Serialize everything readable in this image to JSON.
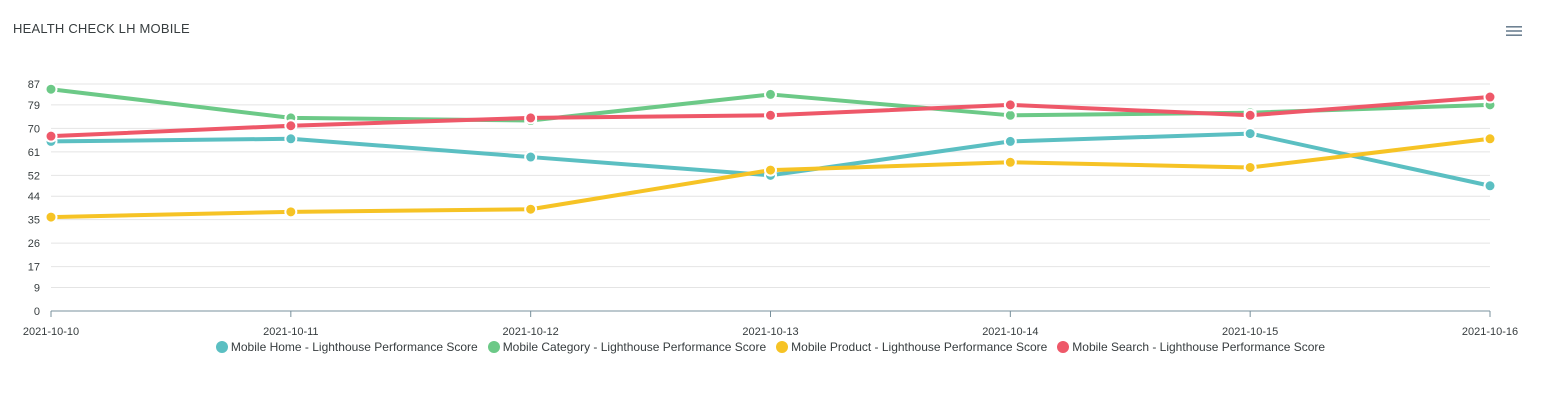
{
  "title": "HEALTH CHECK LH MOBILE",
  "menu": {
    "icon": "hamburger-menu-icon"
  },
  "chart_data": {
    "type": "line",
    "x": [
      "2021-10-10",
      "2021-10-11",
      "2021-10-12",
      "2021-10-13",
      "2021-10-14",
      "2021-10-15",
      "2021-10-16"
    ],
    "y_ticks": [
      "0",
      "9",
      "17",
      "26",
      "35",
      "44",
      "52",
      "61",
      "70",
      "79",
      "87"
    ],
    "ylim": [
      0,
      87
    ],
    "grid": true,
    "legend_position": "bottom",
    "series": [
      {
        "name": "Mobile Home - Lighthouse Performance Score",
        "color": "#5bbfc2",
        "values": [
          65,
          66,
          59,
          52,
          65,
          68,
          48
        ]
      },
      {
        "name": "Mobile Category - Lighthouse Performance Score",
        "color": "#6cc987",
        "values": [
          85,
          74,
          73,
          83,
          75,
          76,
          79
        ]
      },
      {
        "name": "Mobile Product - Lighthouse Performance Score",
        "color": "#f6c325",
        "values": [
          36,
          38,
          39,
          54,
          57,
          55,
          66
        ]
      },
      {
        "name": "Mobile Search - Lighthouse Performance Score",
        "color": "#ee5869",
        "values": [
          67,
          71,
          74,
          75,
          79,
          75,
          82
        ]
      }
    ]
  }
}
